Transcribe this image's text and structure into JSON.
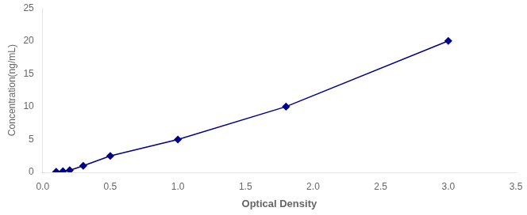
{
  "chart_data": {
    "type": "line",
    "xlabel": "Optical Density",
    "ylabel": "Concentration(ng/mL)",
    "x": [
      0.1,
      0.15,
      0.2,
      0.3,
      0.5,
      1.0,
      1.8,
      3.0
    ],
    "values": [
      0.08,
      0.16,
      0.31,
      1.0,
      2.5,
      5.0,
      10.0,
      20.0
    ],
    "color": "#00008B",
    "marker": "diamond",
    "line_style": "solid",
    "xlim": [
      0,
      3.5
    ],
    "xticks": [
      {
        "value": 0,
        "label": "0.0"
      },
      0.5,
      {
        "value": 1.0,
        "label": "1.0"
      },
      1.5,
      {
        "value": 2.0,
        "label": "2.0"
      },
      2.5,
      {
        "value": 3.0,
        "label": "3.0"
      },
      3.5
    ],
    "ylim": [
      0,
      25
    ],
    "yticks": [
      0,
      5,
      10,
      15,
      20,
      25
    ],
    "grid": false
  }
}
